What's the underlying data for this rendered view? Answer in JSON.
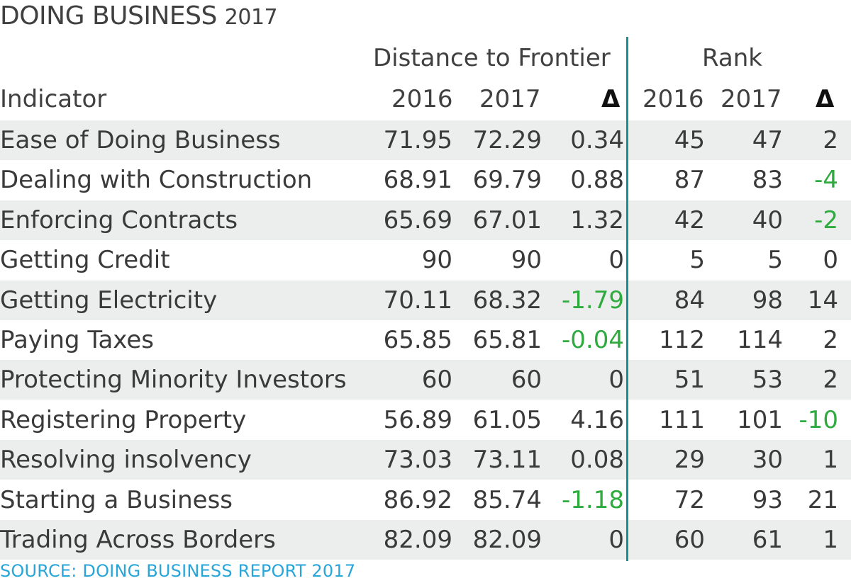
{
  "title": {
    "main": "DOING BUSINESS",
    "year": "2017"
  },
  "headers": {
    "group_dtf": "Distance to Frontier",
    "group_rank": "Rank",
    "indicator": "Indicator",
    "dtf_2016": "2016",
    "dtf_2017": "2017",
    "dtf_delta": "Δ",
    "rank_2016": "2016",
    "rank_2017": "2017",
    "rank_delta": "Δ"
  },
  "source": "SOURCE: DOING BUSINESS REPORT 2017",
  "chart_data": {
    "type": "table",
    "title": "DOING BUSINESS 2017",
    "column_groups": [
      "Distance to Frontier",
      "Rank"
    ],
    "columns": [
      "Indicator",
      "2016",
      "2017",
      "Δ",
      "2016",
      "2017",
      "Δ"
    ],
    "rows": [
      [
        "Ease of Doing Business",
        "71.95",
        "72.29",
        "0.34",
        "45",
        "47",
        "2"
      ],
      [
        "Dealing with Construction",
        "68.91",
        "69.79",
        "0.88",
        "87",
        "83",
        "-4"
      ],
      [
        "Enforcing Contracts",
        "65.69",
        "67.01",
        "1.32",
        "42",
        "40",
        "-2"
      ],
      [
        "Getting Credit",
        "90",
        "90",
        "0",
        "5",
        "5",
        "0"
      ],
      [
        "Getting Electricity",
        "70.11",
        "68.32",
        "-1.79",
        "84",
        "98",
        "14"
      ],
      [
        "Paying Taxes",
        "65.85",
        "65.81",
        "-0.04",
        "112",
        "114",
        "2"
      ],
      [
        "Protecting Minority Investors",
        "60",
        "60",
        "0",
        "51",
        "53",
        "2"
      ],
      [
        "Registering Property",
        "56.89",
        "61.05",
        "4.16",
        "111",
        "101",
        "-10"
      ],
      [
        "Resolving insolvency",
        "73.03",
        "73.11",
        "0.08",
        "29",
        "30",
        "1"
      ],
      [
        "Starting a Business",
        "86.92",
        "85.74",
        "-1.18",
        "72",
        "93",
        "21"
      ],
      [
        "Trading Across Borders",
        "82.09",
        "82.09",
        "0",
        "60",
        "61",
        "1"
      ]
    ],
    "colors": {
      "negative": "#2eaa3e",
      "divider": "#1a8f8f",
      "source": "#2aa5d8",
      "row_stripe": "#eceeee"
    }
  }
}
